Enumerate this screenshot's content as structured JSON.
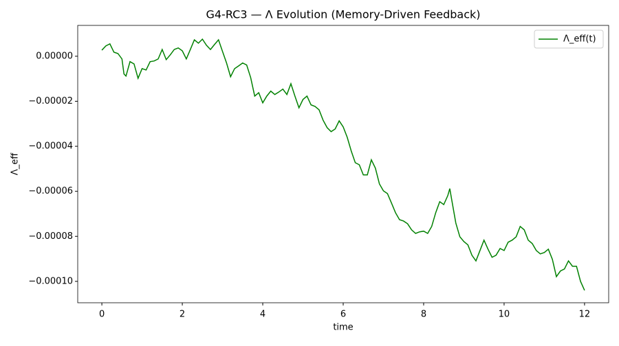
{
  "chart_data": {
    "type": "line",
    "title": "G4-RC3 — Λ Evolution (Memory-Driven Feedback)",
    "x_label": "time",
    "y_label": "Λ_eff",
    "x": [
      0,
      0.1,
      0.2,
      0.3,
      0.4,
      0.5,
      0.55,
      0.6,
      0.7,
      0.8,
      0.9,
      1.0,
      1.1,
      1.2,
      1.3,
      1.4,
      1.5,
      1.6,
      1.7,
      1.8,
      1.9,
      2.0,
      2.1,
      2.2,
      2.3,
      2.4,
      2.5,
      2.6,
      2.7,
      2.8,
      2.9,
      3.0,
      3.1,
      3.2,
      3.3,
      3.4,
      3.5,
      3.6,
      3.7,
      3.8,
      3.9,
      4.0,
      4.1,
      4.2,
      4.3,
      4.4,
      4.5,
      4.6,
      4.7,
      4.8,
      4.9,
      5.0,
      5.1,
      5.2,
      5.3,
      5.4,
      5.5,
      5.6,
      5.7,
      5.8,
      5.9,
      6.0,
      6.1,
      6.2,
      6.3,
      6.4,
      6.5,
      6.6,
      6.7,
      6.8,
      6.9,
      7.0,
      7.1,
      7.2,
      7.3,
      7.4,
      7.5,
      7.6,
      7.7,
      7.8,
      7.9,
      8.0,
      8.1,
      8.2,
      8.3,
      8.4,
      8.5,
      8.6,
      8.65,
      8.7,
      8.8,
      8.9,
      9.0,
      9.1,
      9.2,
      9.3,
      9.4,
      9.5,
      9.6,
      9.7,
      9.8,
      9.9,
      10.0,
      10.1,
      10.2,
      10.3,
      10.4,
      10.5,
      10.6,
      10.7,
      10.8,
      10.9,
      11.0,
      11.1,
      11.2,
      11.3,
      11.4,
      11.5,
      11.6,
      11.7,
      11.8,
      11.9,
      12.0
    ],
    "series": [
      {
        "name": "Λ_eff(t)",
        "color": "#008000",
        "values": [
          2.7e-06,
          4.6e-06,
          5.5e-06,
          1.8e-06,
          1.2e-06,
          -1.2e-06,
          -7.9e-06,
          -8.8e-06,
          -2.4e-06,
          -3.4e-06,
          -9.8e-06,
          -5.5e-06,
          -6.1e-06,
          -2.4e-06,
          -2.1e-06,
          -1.2e-06,
          3e-06,
          -1.5e-06,
          6e-07,
          3e-06,
          3.7e-06,
          2.4e-06,
          -1.2e-06,
          3e-06,
          7.3e-06,
          5.8e-06,
          7.6e-06,
          4.9e-06,
          3e-06,
          5.2e-06,
          7.3e-06,
          2.1e-06,
          -3e-06,
          -9.1e-06,
          -5.5e-06,
          -4.3e-06,
          -3e-06,
          -3.9e-06,
          -9.5e-06,
          -1.77e-05,
          -1.62e-05,
          -2.07e-05,
          -1.77e-05,
          -1.55e-05,
          -1.7e-05,
          -1.59e-05,
          -1.46e-05,
          -1.7e-05,
          -1.22e-05,
          -1.77e-05,
          -2.29e-05,
          -1.92e-05,
          -1.77e-05,
          -2.16e-05,
          -2.23e-05,
          -2.38e-05,
          -2.84e-05,
          -3.17e-05,
          -3.35e-05,
          -3.23e-05,
          -2.87e-05,
          -3.14e-05,
          -3.6e-05,
          -4.21e-05,
          -4.73e-05,
          -4.82e-05,
          -5.27e-05,
          -5.27e-05,
          -4.6e-05,
          -4.97e-05,
          -5.67e-05,
          -5.98e-05,
          -6.1e-05,
          -6.52e-05,
          -6.95e-05,
          -7.26e-05,
          -7.32e-05,
          -7.44e-05,
          -7.71e-05,
          -7.87e-05,
          -7.8e-05,
          -7.77e-05,
          -7.87e-05,
          -7.56e-05,
          -6.95e-05,
          -6.46e-05,
          -6.59e-05,
          -6.19e-05,
          -5.88e-05,
          -6.4e-05,
          -7.41e-05,
          -8.02e-05,
          -8.23e-05,
          -8.38e-05,
          -8.84e-05,
          -9.09e-05,
          -8.63e-05,
          -8.17e-05,
          -8.57e-05,
          -8.93e-05,
          -8.84e-05,
          -8.54e-05,
          -8.63e-05,
          -8.26e-05,
          -8.17e-05,
          -8.02e-05,
          -7.56e-05,
          -7.71e-05,
          -8.17e-05,
          -8.32e-05,
          -8.63e-05,
          -8.78e-05,
          -8.72e-05,
          -8.57e-05,
          -9.02e-05,
          -9.79e-05,
          -9.54e-05,
          -9.45e-05,
          -9.09e-05,
          -9.33e-05,
          -9.33e-05,
          -0.0001,
          -0.000104
        ]
      }
    ],
    "xlim": [
      -0.6,
      12.6
    ],
    "ylim": [
      -0.0001095,
      1.37e-05
    ],
    "xticks": [
      0,
      2,
      4,
      6,
      8,
      10,
      12
    ],
    "yticks": [
      {
        "value": 0,
        "label": "0.00000"
      },
      {
        "value": -2e-05,
        "label": "−0.00002"
      },
      {
        "value": -4e-05,
        "label": "−0.00004"
      },
      {
        "value": -6e-05,
        "label": "−0.00006"
      },
      {
        "value": -8e-05,
        "label": "−0.00008"
      },
      {
        "value": -0.0001,
        "label": "−0.00010"
      }
    ],
    "grid": false,
    "legend": "upper right"
  }
}
